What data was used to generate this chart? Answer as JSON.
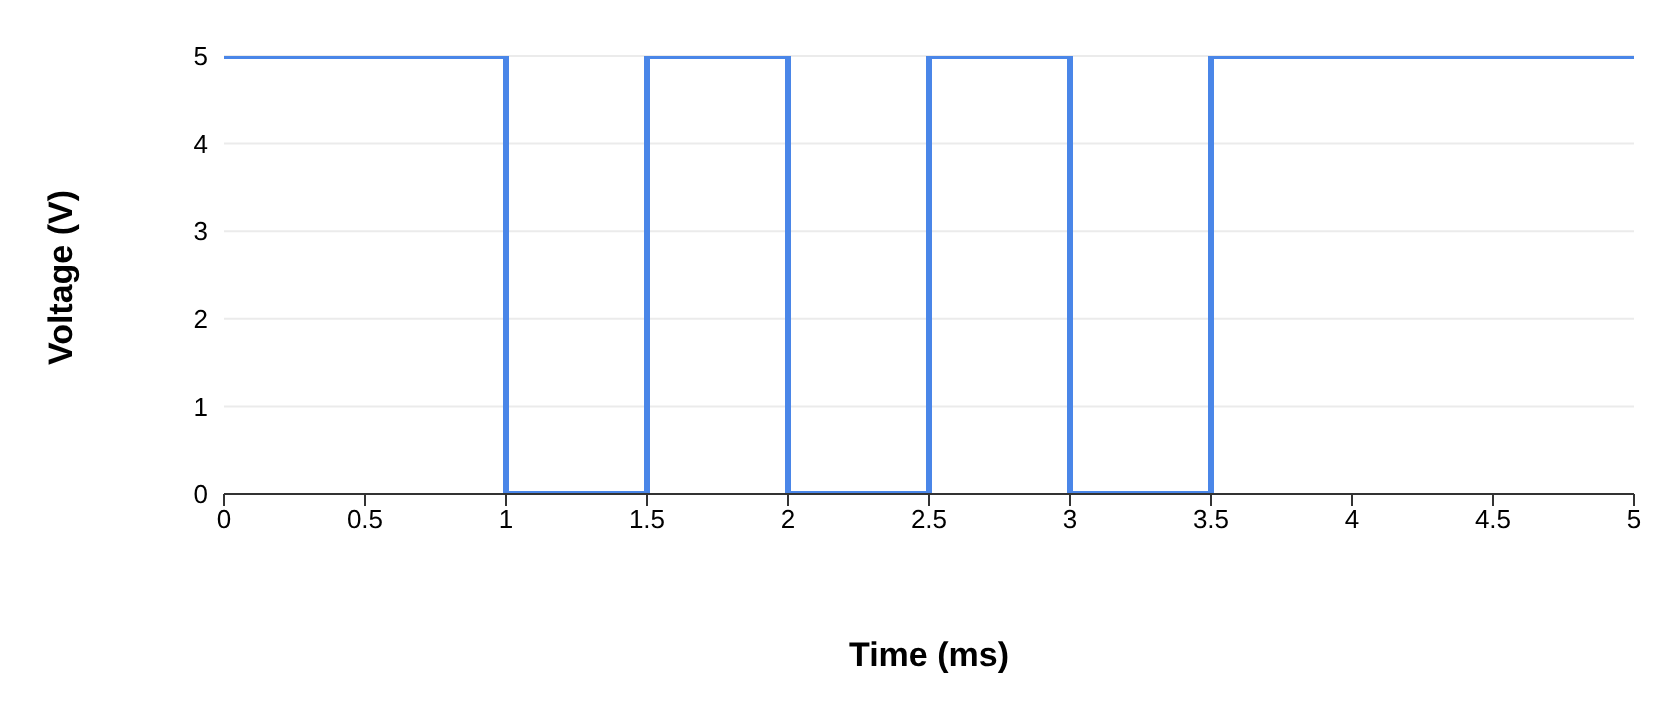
{
  "chart_data": {
    "type": "step",
    "xlabel": "Time (ms)",
    "ylabel": "Voltage (V)",
    "x": [
      0,
      1,
      1.5,
      2,
      2.5,
      3,
      3.5,
      5
    ],
    "series": [
      {
        "color": "#4a86e8",
        "values": [
          5,
          0,
          5,
          0,
          5,
          0,
          5,
          5
        ]
      }
    ],
    "xlim": [
      0,
      5
    ],
    "xticks": [
      0,
      0.5,
      1,
      1.5,
      2,
      2.5,
      3,
      3.5,
      4,
      4.5,
      5
    ],
    "ylim": [
      0,
      5
    ],
    "yticks": [
      0,
      1,
      2,
      3,
      4,
      5
    ],
    "grid": "y",
    "marker": "none",
    "line_style": "solid"
  }
}
